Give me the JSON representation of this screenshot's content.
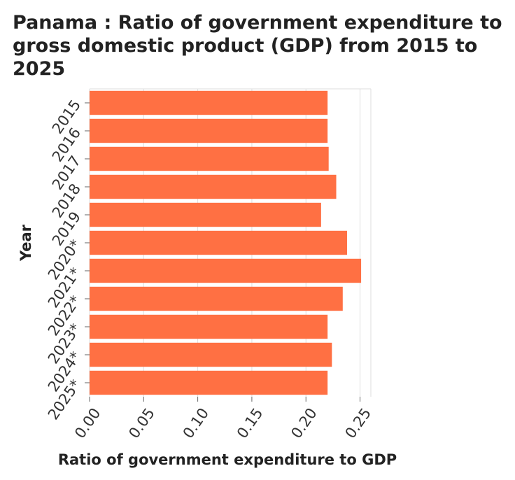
{
  "chart_data": {
    "type": "bar",
    "orientation": "horizontal",
    "title": "Panama : Ratio of government expenditure to gross domestic product (GDP) from 2015 to 2025",
    "xlabel": "Ratio of government expenditure to GDP",
    "ylabel": "Year",
    "categories": [
      "2015",
      "2016",
      "2017",
      "2018",
      "2019",
      "2020*",
      "2021*",
      "2022*",
      "2023*",
      "2024*",
      "2025*"
    ],
    "values": [
      0.22,
      0.22,
      0.221,
      0.228,
      0.214,
      0.238,
      0.251,
      0.234,
      0.22,
      0.224,
      0.22
    ],
    "xlim": [
      0,
      0.26
    ],
    "xticks": [
      "0.00",
      "0.05",
      "0.10",
      "0.15",
      "0.20",
      "0.25"
    ],
    "grid": true,
    "bar_color": "#ff7043"
  }
}
